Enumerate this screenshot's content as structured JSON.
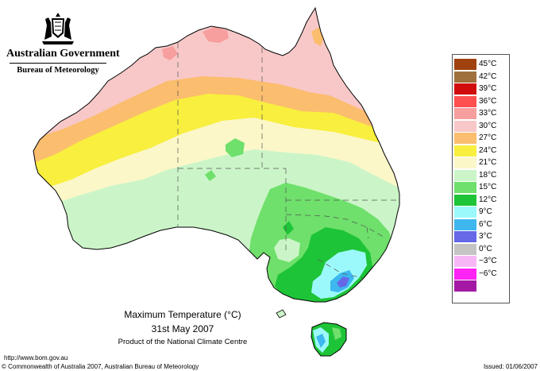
{
  "header": {
    "government": "Australian Government",
    "bureau": "Bureau of Meteorology"
  },
  "legend": {
    "items": [
      {
        "label": "45°C",
        "color": "#a0420f"
      },
      {
        "label": "42°C",
        "color": "#a0703c"
      },
      {
        "label": "39°C",
        "color": "#d10c0c"
      },
      {
        "label": "36°C",
        "color": "#ff4f4f"
      },
      {
        "label": "33°C",
        "color": "#f79e9e"
      },
      {
        "label": "30°C",
        "color": "#f8c8c8"
      },
      {
        "label": "27°C",
        "color": "#fbbd6e"
      },
      {
        "label": "24°C",
        "color": "#f8ef3e"
      },
      {
        "label": "21°C",
        "color": "#fbf7c8"
      },
      {
        "label": "18°C",
        "color": "#cbf5c8"
      },
      {
        "label": "15°C",
        "color": "#6ee06b"
      },
      {
        "label": "12°C",
        "color": "#1ec437"
      },
      {
        "label": "9°C",
        "color": "#9cf9fb"
      },
      {
        "label": "6°C",
        "color": "#3db7ee"
      },
      {
        "label": "3°C",
        "color": "#6668e8"
      },
      {
        "label": "0°C",
        "color": "#c4c4c4"
      },
      {
        "label": "−3°C",
        "color": "#f7b7f7"
      },
      {
        "label": "−6°C",
        "color": "#ff23f5"
      },
      {
        "label": "",
        "color": "#a319a5"
      }
    ]
  },
  "caption": {
    "title": "Maximum Temperature (°C)",
    "date": "31st May 2007",
    "product": "Product of the National Climate Centre"
  },
  "footer": {
    "url": "http://www.bom.gov.au",
    "copyright": "© Commonwealth of Australia 2007, Australian Bureau of Meteorology",
    "issued": "Issued: 01/06/2007"
  }
}
